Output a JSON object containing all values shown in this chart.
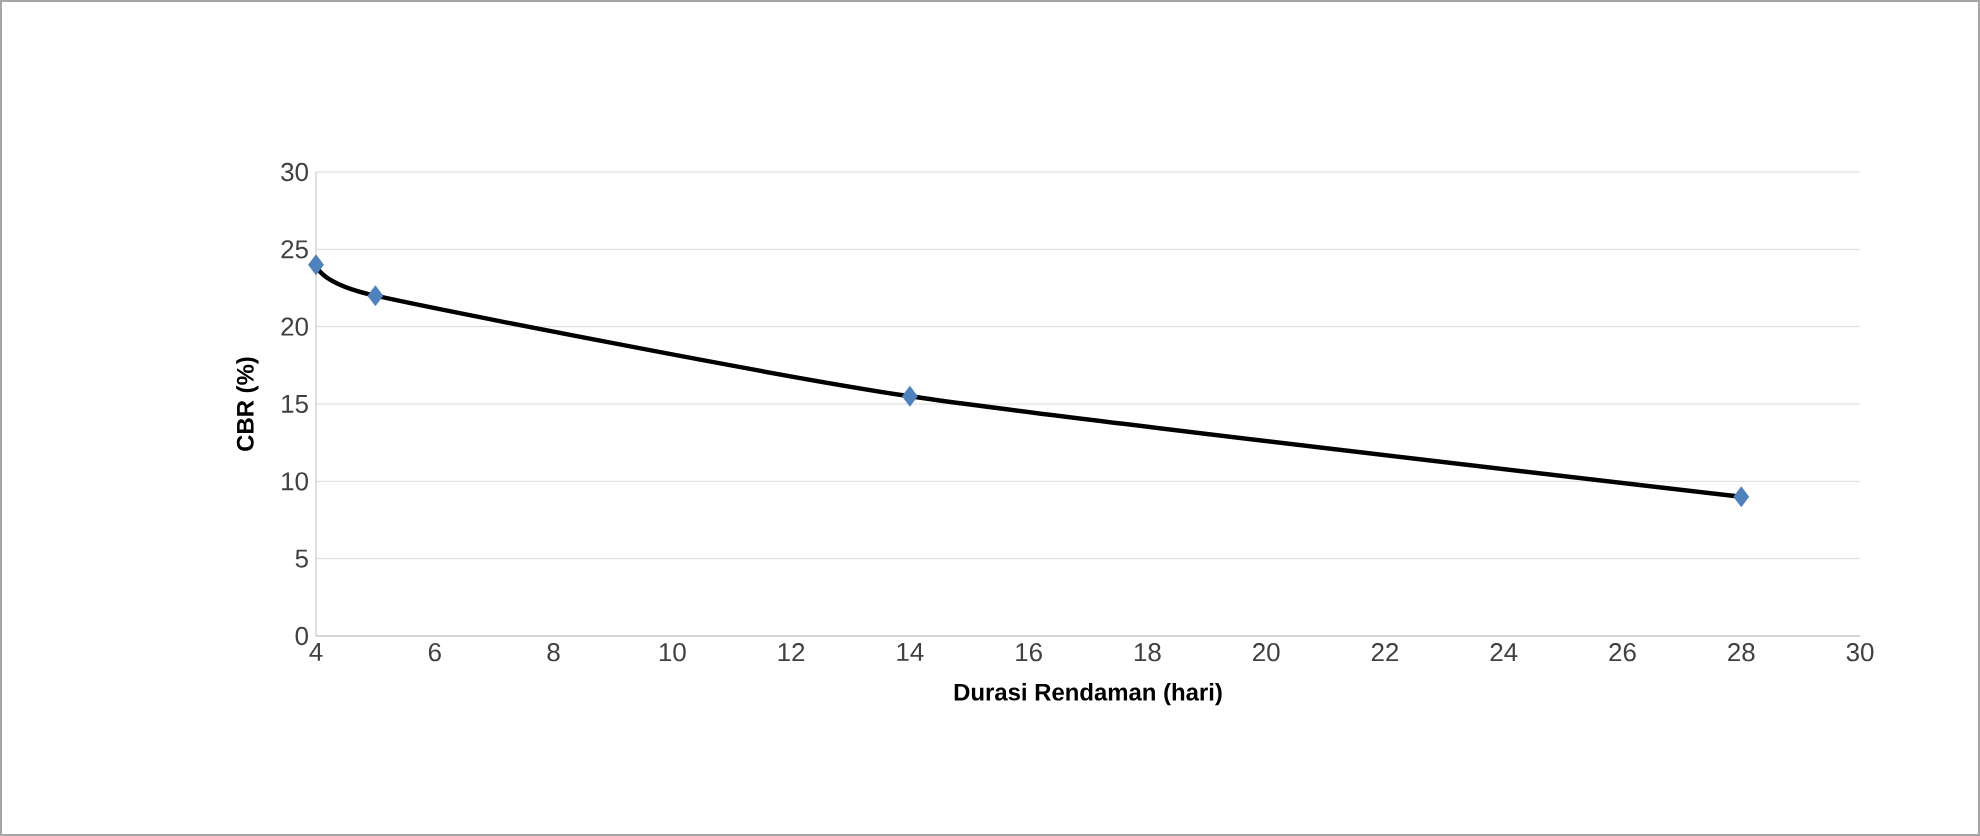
{
  "chart_data": {
    "type": "line",
    "xlabel": "Durasi Rendaman (hari)",
    "ylabel": "CBR (%)",
    "x": [
      4,
      5,
      14,
      28
    ],
    "series": [
      {
        "color": "#000000",
        "values": [
          24,
          22,
          15.5,
          9
        ],
        "marker": "none"
      },
      {
        "type": "scatter",
        "color": "#4f81bd",
        "values": [
          24,
          22,
          15.5,
          9
        ],
        "marker": "diamond"
      }
    ],
    "xlim": [
      4,
      30
    ],
    "xticks": [
      4,
      6,
      8,
      10,
      12,
      14,
      16,
      18,
      20,
      22,
      24,
      26,
      28,
      30
    ],
    "ylim": [
      0,
      30
    ],
    "yticks": [
      0,
      5,
      10,
      15,
      20,
      25,
      30
    ],
    "grid": "y"
  }
}
